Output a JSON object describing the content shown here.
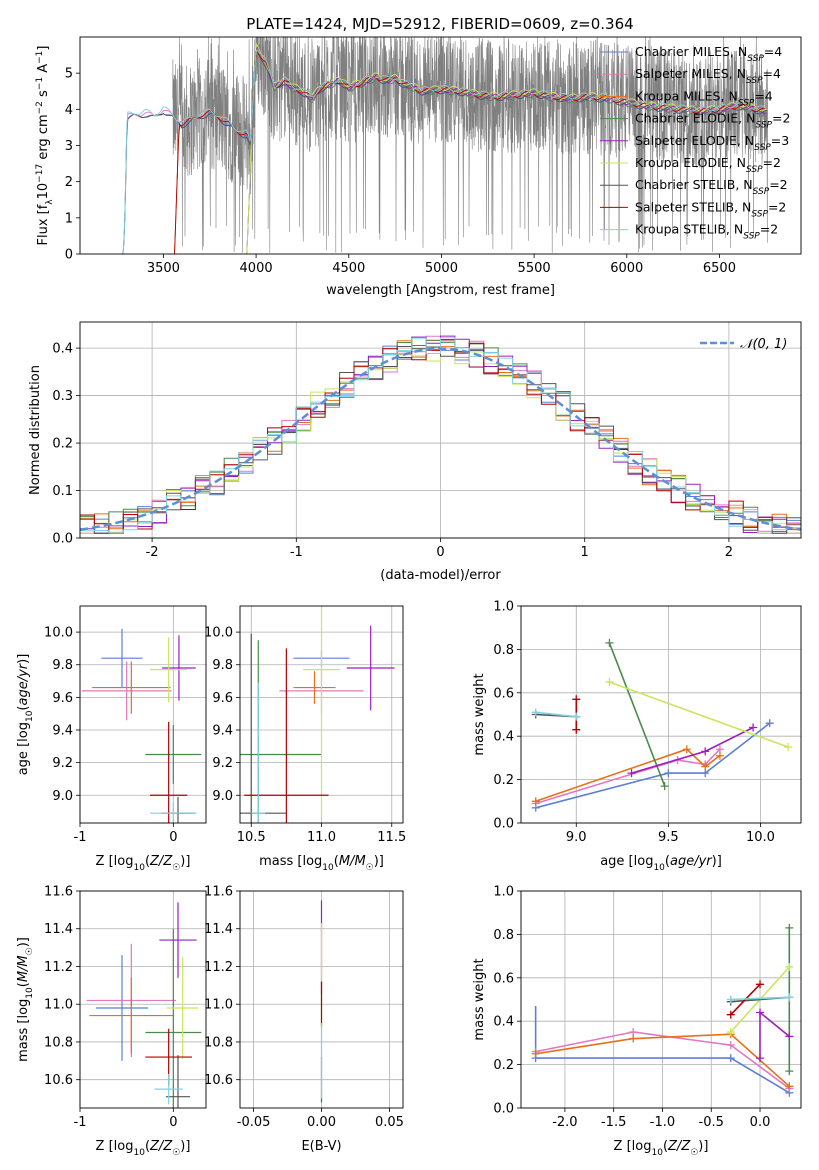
{
  "figure_title": "PLATE=1424, MJD=52912, FIBERID=0609, z=0.364",
  "models": [
    {
      "name": "Chabrier MILES, N$_{SSP}$=4",
      "label": "Chabrier MILES, N",
      "sub": "SSP",
      "suffix": "=4",
      "color": "#5b7fd6"
    },
    {
      "name": "Salpeter MILES, N$_{SSP}$=4",
      "label": "Salpeter MILES, N",
      "sub": "SSP",
      "suffix": "=4",
      "color": "#e377c2"
    },
    {
      "name": "Kroupa MILES, N$_{SSP}$=4",
      "label": "Kroupa MILES, N",
      "sub": "SSP",
      "suffix": "=4",
      "color": "#e8701a"
    },
    {
      "name": "Chabrier ELODIE, N$_{SSP}$=2",
      "label": "Chabrier ELODIE, N",
      "sub": "SSP",
      "suffix": "=2",
      "color": "#4c8a4c"
    },
    {
      "name": "Salpeter ELODIE, N$_{SSP}$=3",
      "label": "Salpeter ELODIE, N",
      "sub": "SSP",
      "suffix": "=3",
      "color": "#9b1fbf"
    },
    {
      "name": "Kroupa ELODIE, N$_{SSP}$=2",
      "label": "Kroupa ELODIE, N",
      "sub": "SSP",
      "suffix": "=2",
      "color": "#c6e85a"
    },
    {
      "name": "Chabrier STELIB, N$_{SSP}$=2",
      "label": "Chabrier STELIB, N",
      "sub": "SSP",
      "suffix": "=2",
      "color": "#555555"
    },
    {
      "name": "Salpeter STELIB, N$_{SSP}$=2",
      "label": "Salpeter STELIB, N",
      "sub": "SSP",
      "suffix": "=2",
      "color": "#b30000"
    },
    {
      "name": "Kroupa STELIB, N$_{SSP}$=2",
      "label": "Kroupa STELIB, N",
      "sub": "SSP",
      "suffix": "=2",
      "color": "#7fd3e0"
    }
  ],
  "chart_data": [
    {
      "id": "spectrum",
      "type": "line",
      "xlabel": "wavelength [Angstrom, rest frame]",
      "ylabel": "Flux [f_λ 10^-17 erg cm^-2 s^-1 A^-1]",
      "ylabel_parts": {
        "a": "Flux [f",
        "a_sub": "λ",
        "b": "10",
        "b_sup": "−17",
        "c": " erg cm",
        "c_sup": "−2",
        "d": " s",
        "d_sup": "−1",
        "e": " A",
        "e_sup": "−1",
        "f": "]"
      },
      "xlim": [
        3050,
        6940
      ],
      "ylim": [
        0,
        6.0
      ],
      "xticks": [
        3500,
        4000,
        4500,
        5000,
        5500,
        6000,
        6500
      ],
      "yticks": [
        0,
        1,
        2,
        3,
        4,
        5
      ],
      "data_color": "#808080",
      "data_range": [
        3550,
        6760
      ],
      "models_start": [
        3280,
        3280,
        3560,
        3950,
        3950,
        3950,
        3280,
        3560,
        3280
      ],
      "continuum_points": [
        [
          3280,
          0
        ],
        [
          3300,
          3.8
        ],
        [
          3400,
          3.9
        ],
        [
          3450,
          3.8
        ],
        [
          3500,
          4.0
        ],
        [
          3600,
          3.6
        ],
        [
          3650,
          3.7
        ],
        [
          3700,
          3.85
        ],
        [
          3750,
          3.9
        ],
        [
          3800,
          3.8
        ],
        [
          3850,
          3.6
        ],
        [
          3900,
          3.4
        ],
        [
          3950,
          3.3
        ],
        [
          3970,
          3.0
        ],
        [
          4000,
          5.7
        ],
        [
          4050,
          5.3
        ],
        [
          4100,
          4.6
        ],
        [
          4150,
          4.8
        ],
        [
          4200,
          4.6
        ],
        [
          4250,
          4.5
        ],
        [
          4300,
          4.3
        ],
        [
          4350,
          4.6
        ],
        [
          4400,
          4.7
        ],
        [
          4450,
          4.8
        ],
        [
          4500,
          4.6
        ],
        [
          4550,
          4.7
        ],
        [
          4600,
          4.8
        ],
        [
          4650,
          4.9
        ],
        [
          4700,
          4.8
        ],
        [
          4750,
          4.85
        ],
        [
          4800,
          4.7
        ],
        [
          4850,
          4.6
        ],
        [
          4900,
          4.5
        ],
        [
          5000,
          4.55
        ],
        [
          5100,
          4.5
        ],
        [
          5200,
          4.4
        ],
        [
          5300,
          4.35
        ],
        [
          5400,
          4.4
        ],
        [
          5500,
          4.45
        ],
        [
          5600,
          4.35
        ],
        [
          5700,
          4.3
        ],
        [
          5800,
          4.35
        ],
        [
          5900,
          4.3
        ],
        [
          6000,
          4.2
        ],
        [
          6100,
          4.1
        ],
        [
          6200,
          4.05
        ],
        [
          6300,
          4.0
        ],
        [
          6400,
          3.95
        ],
        [
          6500,
          4.0
        ],
        [
          6600,
          4.1
        ],
        [
          6700,
          4.0
        ],
        [
          6760,
          3.95
        ]
      ]
    },
    {
      "id": "residuals",
      "type": "histogram",
      "xlabel": "(data-model)/error",
      "ylabel": "Normed distribution",
      "xlim": [
        -2.5,
        2.5
      ],
      "ylim": [
        0,
        0.455
      ],
      "xticks": [
        -2,
        -1,
        0,
        1,
        2
      ],
      "yticks": [
        0.0,
        0.1,
        0.2,
        0.3,
        0.4
      ],
      "gaussian_label": "𝒩(0, 1)",
      "gaussian_color": "#5b8fd6",
      "bin_width": 0.1
    },
    {
      "id": "age_vs_Z",
      "type": "errorbar",
      "xlabel": "Z [log10(Z/Z☉)]",
      "ylabel": "age  [log10(age/yr)]",
      "xlim": [
        -1.0,
        0.35
      ],
      "ylim": [
        8.83,
        10.16
      ],
      "xticks": [
        -1,
        0
      ],
      "yticks": [
        9.0,
        9.2,
        9.4,
        9.6,
        9.8,
        10.0
      ],
      "points": [
        {
          "m": 0,
          "x": -0.55,
          "y": 9.84,
          "xerr": 0.22,
          "yerr": 0.18
        },
        {
          "m": 1,
          "x": -0.5,
          "y": 9.64,
          "xerr": 0.48,
          "yerr": 0.18
        },
        {
          "m": 2,
          "x": -0.45,
          "y": 9.66,
          "xerr": 0.42,
          "yerr": 0.16
        },
        {
          "m": 3,
          "x": 0.0,
          "y": 9.25,
          "xerr": 0.3,
          "yerr": 0.18
        },
        {
          "m": 4,
          "x": 0.06,
          "y": 9.78,
          "xerr": 0.18,
          "yerr": 0.2
        },
        {
          "m": 5,
          "x": -0.05,
          "y": 9.77,
          "xerr": 0.2,
          "yerr": 0.2
        },
        {
          "m": 6,
          "x": 0.05,
          "y": 8.89,
          "xerr": 0.18,
          "yerr": 0.1
        },
        {
          "m": 7,
          "x": -0.05,
          "y": 9.0,
          "xerr": 0.2,
          "yerr": 0.45
        },
        {
          "m": 8,
          "x": 0.0,
          "y": 8.89,
          "xerr": 0.25,
          "yerr": 0.07
        }
      ]
    },
    {
      "id": "age_vs_mass",
      "type": "errorbar",
      "xlabel": "mass [log10(M/M☉)]",
      "ylabel": "",
      "xlim": [
        10.42,
        11.58
      ],
      "ylim": [
        8.83,
        10.16
      ],
      "xticks": [
        10.5,
        11.0,
        11.5
      ],
      "yticks": [
        9.0,
        9.2,
        9.4,
        9.6,
        9.8,
        10.0
      ],
      "points": [
        {
          "m": 0,
          "x": 11.0,
          "y": 9.84,
          "xerr": 0.2,
          "yerr": 0.05
        },
        {
          "m": 1,
          "x": 11.0,
          "y": 9.64,
          "xerr": 0.3,
          "yerr": 0.14
        },
        {
          "m": 2,
          "x": 10.95,
          "y": 9.66,
          "xerr": 0.15,
          "yerr": 0.1
        },
        {
          "m": 3,
          "x": 10.55,
          "y": 9.25,
          "xerr": 0.45,
          "yerr": 0.7
        },
        {
          "m": 4,
          "x": 11.35,
          "y": 9.78,
          "xerr": 0.17,
          "yerr": 0.26
        },
        {
          "m": 5,
          "x": 11.0,
          "y": 9.77,
          "xerr": 0.13,
          "yerr": 0.9
        },
        {
          "m": 6,
          "x": 10.5,
          "y": 8.89,
          "xerr": 0.25,
          "yerr": 1.1
        },
        {
          "m": 7,
          "x": 10.75,
          "y": 9.0,
          "xerr": 0.3,
          "yerr": 0.9
        },
        {
          "m": 8,
          "x": 10.55,
          "y": 8.89,
          "xerr": 0.05,
          "yerr": 0.8
        }
      ]
    },
    {
      "id": "weight_vs_age",
      "type": "line",
      "xlabel": "age  [log10(age/yr)]",
      "ylabel": "mass weight",
      "xlim": [
        8.7,
        10.22
      ],
      "ylim": [
        0,
        1.0
      ],
      "xticks": [
        9.0,
        9.5,
        10.0
      ],
      "yticks": [
        0.0,
        0.2,
        0.4,
        0.6,
        0.8,
        1.0
      ],
      "series": [
        {
          "m": 0,
          "points": [
            [
              8.78,
              0.07
            ],
            [
              9.5,
              0.23
            ],
            [
              9.7,
              0.23
            ],
            [
              10.05,
              0.46
            ]
          ],
          "yerr": 0.01
        },
        {
          "m": 1,
          "points": [
            [
              8.78,
              0.09
            ],
            [
              9.55,
              0.29
            ],
            [
              9.7,
              0.27
            ],
            [
              9.78,
              0.34
            ]
          ],
          "yerr": 0.01
        },
        {
          "m": 2,
          "points": [
            [
              8.78,
              0.1
            ],
            [
              9.6,
              0.34
            ],
            [
              9.7,
              0.26
            ],
            [
              9.78,
              0.31
            ]
          ],
          "yerr": 0.01
        },
        {
          "m": 3,
          "points": [
            [
              9.18,
              0.83
            ],
            [
              9.48,
              0.17
            ]
          ],
          "yerr": 0.01
        },
        {
          "m": 4,
          "points": [
            [
              9.3,
              0.23
            ],
            [
              9.7,
              0.33
            ],
            [
              9.96,
              0.44
            ]
          ],
          "yerr": 0.01
        },
        {
          "m": 5,
          "points": [
            [
              9.18,
              0.65
            ],
            [
              10.15,
              0.35
            ]
          ],
          "yerr": 0.01
        },
        {
          "m": 6,
          "points": [
            [
              8.78,
              0.5
            ],
            [
              9.0,
              0.49
            ]
          ],
          "yerr": 0.01
        },
        {
          "m": 7,
          "points": [
            [
              9.0,
              0.43
            ],
            [
              9.0,
              0.57
            ]
          ],
          "yerr": 0.02
        },
        {
          "m": 8,
          "points": [
            [
              8.78,
              0.51
            ],
            [
              9.0,
              0.49
            ]
          ],
          "yerr": 0.01
        }
      ]
    },
    {
      "id": "mass_vs_Z",
      "type": "errorbar",
      "xlabel": "Z [log10(Z/Z☉)]",
      "ylabel": "mass [log10(M/M☉)]",
      "xlim": [
        -1.0,
        0.35
      ],
      "ylim": [
        10.45,
        11.6
      ],
      "xticks": [
        -1,
        0
      ],
      "yticks": [
        10.6,
        10.8,
        11.0,
        11.2,
        11.4,
        11.6
      ],
      "points": [
        {
          "m": 0,
          "x": -0.55,
          "y": 10.98,
          "xerr": 0.28,
          "yerr": 0.28
        },
        {
          "m": 1,
          "x": -0.45,
          "y": 11.02,
          "xerr": 0.48,
          "yerr": 0.3
        },
        {
          "m": 2,
          "x": -0.45,
          "y": 10.94,
          "xerr": 0.45,
          "yerr": 0.2
        },
        {
          "m": 3,
          "x": 0.0,
          "y": 10.85,
          "xerr": 0.3,
          "yerr": 0.55
        },
        {
          "m": 4,
          "x": 0.05,
          "y": 11.34,
          "xerr": 0.2,
          "yerr": 0.2
        },
        {
          "m": 5,
          "x": 0.1,
          "y": 10.98,
          "xerr": 0.17,
          "yerr": 0.27
        },
        {
          "m": 6,
          "x": 0.05,
          "y": 10.51,
          "xerr": 0.13,
          "yerr": 0.22
        },
        {
          "m": 7,
          "x": -0.05,
          "y": 10.72,
          "xerr": 0.25,
          "yerr": 0.15
        },
        {
          "m": 8,
          "x": -0.05,
          "y": 10.55,
          "xerr": 0.15,
          "yerr": 0.08
        }
      ]
    },
    {
      "id": "mass_vs_EBV",
      "type": "errorbar",
      "xlabel": "E(B-V)",
      "ylabel": "",
      "xlim": [
        -0.06,
        0.06
      ],
      "ylim": [
        10.45,
        11.6
      ],
      "xticks": [
        -0.05,
        0.0,
        0.05
      ],
      "yticks": [
        10.6,
        10.8,
        11.0,
        11.2,
        11.4,
        11.6
      ],
      "points": [
        {
          "m": 4,
          "x": 0.0,
          "y": 11.3,
          "xerr": 0.0,
          "yerr": 0.25
        },
        {
          "m": 5,
          "x": 0.0,
          "y": 11.15,
          "xerr": 0.0,
          "yerr": 0.28
        },
        {
          "m": 7,
          "x": 0.0,
          "y": 11.0,
          "xerr": 0.0,
          "yerr": 0.12
        },
        {
          "m": 6,
          "x": 0.0,
          "y": 10.6,
          "xerr": 0.0,
          "yerr": 0.12
        },
        {
          "m": 8,
          "x": 0.0,
          "y": 10.7,
          "xerr": 0.0,
          "yerr": 0.2
        }
      ]
    },
    {
      "id": "weight_vs_Z",
      "type": "line",
      "xlabel": "Z [log10(Z/Z☉)]",
      "ylabel": "mass weight",
      "xlim": [
        -2.45,
        0.42
      ],
      "ylim": [
        0,
        1.0
      ],
      "xticks": [
        -2.0,
        -1.5,
        -1.0,
        -0.5,
        0.0
      ],
      "yticks": [
        0.0,
        0.2,
        0.4,
        0.6,
        0.8,
        1.0
      ],
      "series": [
        {
          "m": 0,
          "points": [
            [
              -2.3,
              0.23
            ],
            [
              -0.3,
              0.23
            ],
            [
              0.3,
              0.07
            ]
          ],
          "vline": [
            -2.3,
            0.23,
            0.47
          ]
        },
        {
          "m": 1,
          "points": [
            [
              -2.3,
              0.26
            ],
            [
              -1.3,
              0.35
            ],
            [
              -0.3,
              0.29
            ],
            [
              0.3,
              0.09
            ]
          ]
        },
        {
          "m": 2,
          "points": [
            [
              -2.3,
              0.25
            ],
            [
              -1.3,
              0.32
            ],
            [
              -0.3,
              0.34
            ],
            [
              0.3,
              0.1
            ]
          ]
        },
        {
          "m": 3,
          "points": [
            [
              0.3,
              0.17
            ],
            [
              0.3,
              0.83
            ]
          ]
        },
        {
          "m": 4,
          "points": [
            [
              0.0,
              0.23
            ],
            [
              0.0,
              0.44
            ],
            [
              0.3,
              0.33
            ]
          ]
        },
        {
          "m": 5,
          "points": [
            [
              -0.3,
              0.35
            ],
            [
              0.3,
              0.65
            ]
          ]
        },
        {
          "m": 6,
          "points": [
            [
              -0.3,
              0.49
            ],
            [
              0.3,
              0.51
            ]
          ]
        },
        {
          "m": 7,
          "points": [
            [
              -0.3,
              0.43
            ],
            [
              0.0,
              0.57
            ]
          ]
        },
        {
          "m": 8,
          "points": [
            [
              -0.3,
              0.5
            ],
            [
              0.3,
              0.51
            ]
          ]
        }
      ]
    }
  ]
}
